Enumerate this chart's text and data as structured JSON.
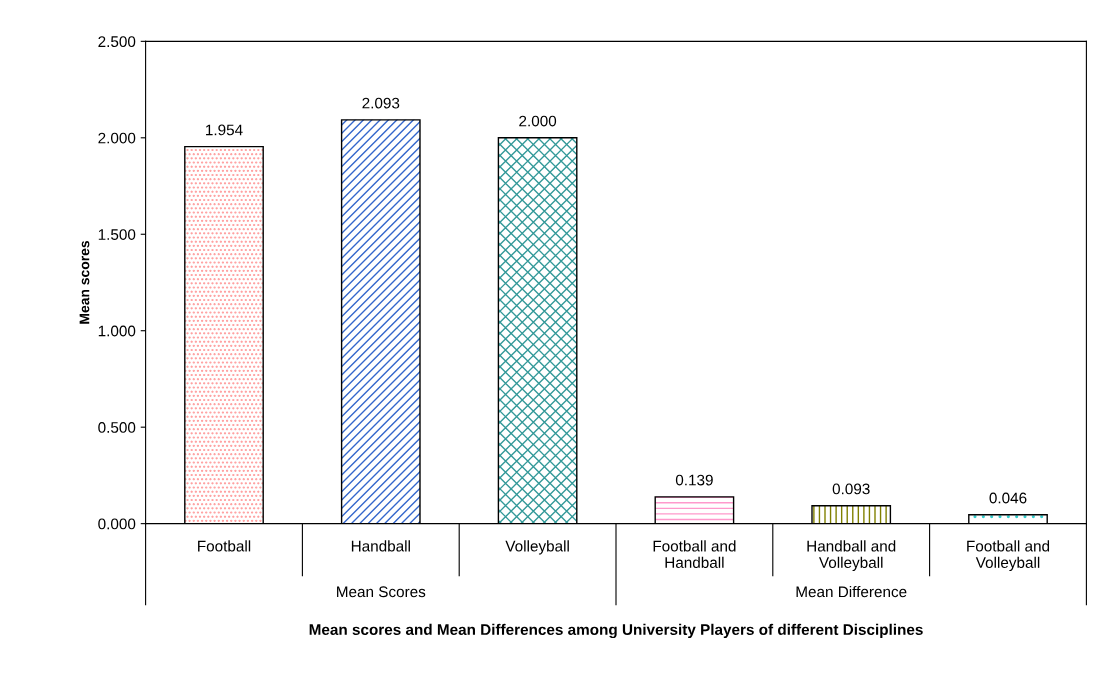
{
  "chart_data": {
    "type": "bar",
    "xlabel": "Mean scores and Mean Differences among University Players of different Disciplines",
    "ylabel": "Mean scores",
    "categories": [
      "Football",
      "Handball",
      "Volleyball",
      "Football and\nHandball",
      "Handball and\nVolleyball",
      "Football and\nVolleyball"
    ],
    "values": [
      1.954,
      2.093,
      2.0,
      0.139,
      0.093,
      0.046
    ],
    "value_labels": [
      "1.954",
      "2.093",
      "2.000",
      "0.139",
      "0.093",
      "0.046"
    ],
    "colors": [
      "#ff9999",
      "#3366cc",
      "#339999",
      "#ff99cc",
      "#808000",
      "#33cccc"
    ],
    "ylim": [
      0,
      2.5
    ],
    "yticks": [
      {
        "value": 0,
        "label": "0.000"
      },
      {
        "value": 0.5,
        "label": "0.500"
      },
      {
        "value": 1.0,
        "label": "1.000"
      },
      {
        "value": 1.5,
        "label": "1.500"
      },
      {
        "value": 2.0,
        "label": "2.000"
      },
      {
        "value": 2.5,
        "label": "2.500"
      }
    ],
    "annotations": [
      "Mean Scores",
      "Mean Difference"
    ],
    "grid": false,
    "legend": false
  }
}
